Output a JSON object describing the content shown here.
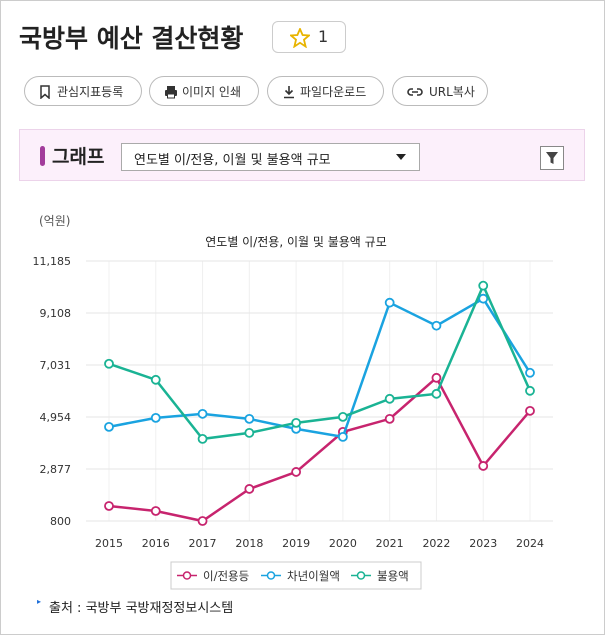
{
  "header": {
    "title": "국방부 예산 결산현황",
    "star_count": 1
  },
  "toolbar": {
    "buttons": [
      "관심지표등록",
      "이미지 인쇄",
      "파일다운로드",
      "URL복사"
    ]
  },
  "panel": {
    "label": "그래프",
    "select": "연도별 이/전용, 이월 및 불용액 규모"
  },
  "chart_data": {
    "type": "line",
    "title": "연도별 이/전용, 이월 및 불용액 규모",
    "y_unit": "(억원)",
    "categories": [
      "2015",
      "2016",
      "2017",
      "2018",
      "2019",
      "2020",
      "2021",
      "2022",
      "2023",
      "2024"
    ],
    "series": [
      {
        "name": "이/전용등",
        "color": "#c7246e",
        "values": [
          1400,
          1200,
          800,
          2080,
          2760,
          4360,
          4880,
          6520,
          3000,
          5200
        ]
      },
      {
        "name": "차년이월액",
        "color": "#1aa3e0",
        "values": [
          4560,
          4920,
          5080,
          4880,
          4480,
          4160,
          9520,
          8600,
          9680,
          6720
        ]
      },
      {
        "name": "불용액",
        "color": "#1ab394",
        "values": [
          7080,
          6440,
          4080,
          4320,
          4720,
          4960,
          5680,
          5880,
          10200,
          6000
        ]
      }
    ],
    "ylim": [
      800,
      11185
    ],
    "yticks": [
      800,
      {
        "value": 2877,
        "label": "2,877"
      },
      {
        "value": 4954,
        "label": "4,954"
      },
      {
        "value": 7031,
        "label": "7,031"
      },
      {
        "value": 9108,
        "label": "9,108"
      },
      {
        "value": 11185,
        "label": "11,185"
      }
    ],
    "grid": true
  },
  "source": "출처 : 국방부 국방재정정보시스템"
}
